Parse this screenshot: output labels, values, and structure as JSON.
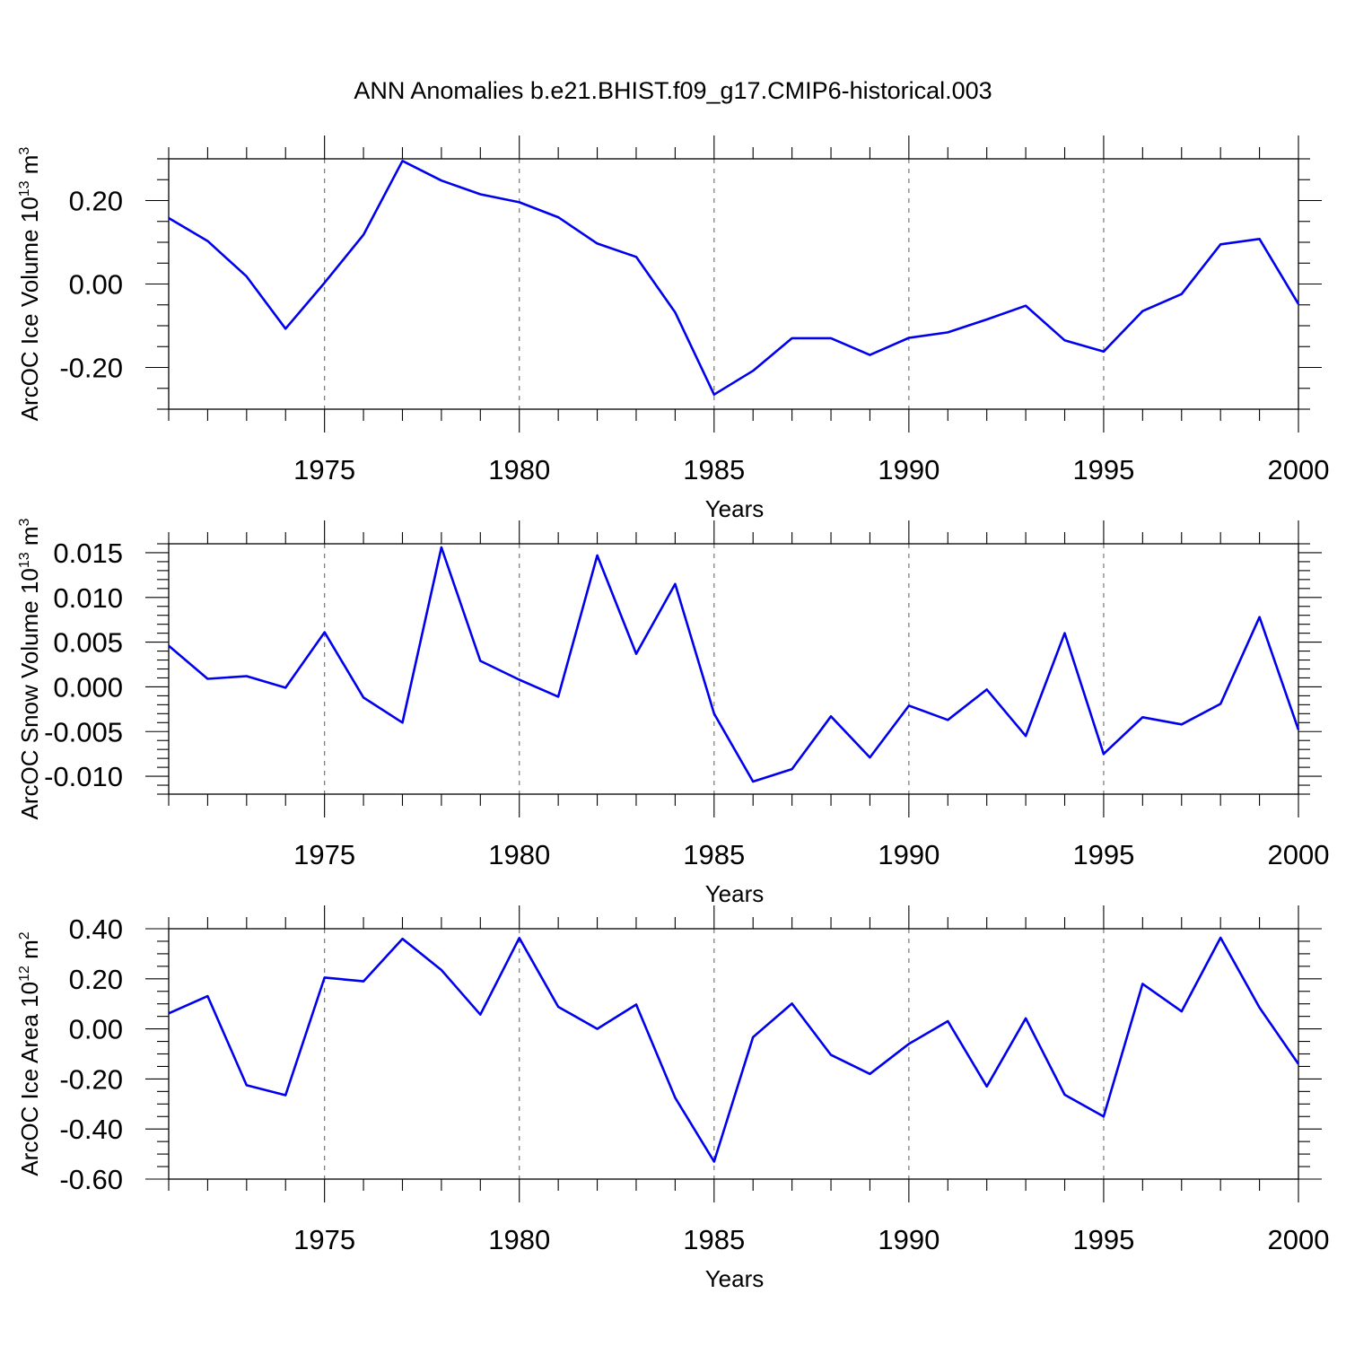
{
  "chart_data": {
    "title": "ANN Anomalies b.e21.BHIST.f09_g17.CMIP6-historical.003",
    "x": [
      1971,
      1972,
      1973,
      1974,
      1975,
      1976,
      1977,
      1978,
      1979,
      1980,
      1981,
      1982,
      1983,
      1984,
      1985,
      1986,
      1987,
      1988,
      1989,
      1990,
      1991,
      1992,
      1993,
      1994,
      1995,
      1996,
      1997,
      1998,
      1999,
      2000
    ],
    "panels": [
      {
        "type": "line",
        "ylabel": {
          "main": "ArcOC Ice Volume 10",
          "exp": "13",
          "unit": " m",
          "unit_exp": "3"
        },
        "xlabel": "Years",
        "xlim": [
          1971,
          2000
        ],
        "ylim": [
          -0.3,
          0.3
        ],
        "yticks": [
          -0.2,
          0.0,
          0.2
        ],
        "ytick_labels": [
          "-0.20",
          "0.00",
          "0.20"
        ],
        "yminor": 0.05,
        "xticks": [
          1975,
          1980,
          1985,
          1990,
          1995,
          2000
        ],
        "xtick_labels": [
          "1975",
          "1980",
          "1985",
          "1990",
          "1995",
          "2000"
        ],
        "grid_x": [
          1975,
          1980,
          1985,
          1990,
          1995
        ],
        "color": "#0000ee",
        "values": [
          0.158,
          0.103,
          0.018,
          -0.107,
          0.003,
          0.118,
          0.295,
          0.248,
          0.215,
          0.196,
          0.16,
          0.097,
          0.065,
          -0.068,
          -0.265,
          -0.208,
          -0.13,
          -0.13,
          -0.17,
          -0.129,
          -0.116,
          -0.085,
          -0.052,
          -0.135,
          -0.162,
          -0.065,
          -0.024,
          0.095,
          0.108,
          -0.048
        ]
      },
      {
        "type": "line",
        "ylabel": {
          "main": "ArcOC Snow Volume 10",
          "exp": "13",
          "unit": " m",
          "unit_exp": "3"
        },
        "xlabel": "Years",
        "xlim": [
          1971,
          2000
        ],
        "ylim": [
          -0.012,
          0.016
        ],
        "yticks": [
          -0.01,
          -0.005,
          0.0,
          0.005,
          0.01,
          0.015
        ],
        "ytick_labels": [
          "-0.010",
          "-0.005",
          "0.000",
          "0.005",
          "0.010",
          "0.015"
        ],
        "yminor": 0.001,
        "xticks": [
          1975,
          1980,
          1985,
          1990,
          1995,
          2000
        ],
        "xtick_labels": [
          "1975",
          "1980",
          "1985",
          "1990",
          "1995",
          "2000"
        ],
        "grid_x": [
          1975,
          1980,
          1985,
          1990,
          1995
        ],
        "color": "#0000ee",
        "values": [
          0.0046,
          0.0009,
          0.0012,
          -0.0001,
          0.0061,
          -0.0012,
          -0.004,
          0.0156,
          0.0029,
          0.0008,
          -0.0011,
          0.0147,
          0.0037,
          0.0115,
          -0.003,
          -0.0106,
          -0.0092,
          -0.0033,
          -0.0079,
          -0.0021,
          -0.0037,
          -0.0003,
          -0.0055,
          0.006,
          -0.0075,
          -0.0034,
          -0.0042,
          -0.0019,
          0.0078,
          -0.0048
        ]
      },
      {
        "type": "line",
        "ylabel": {
          "main": "ArcOC Ice Area 10",
          "exp": "12",
          "unit": " m",
          "unit_exp": "2"
        },
        "xlabel": "Years",
        "xlim": [
          1971,
          2000
        ],
        "ylim": [
          -0.6,
          0.4
        ],
        "yticks": [
          -0.6,
          -0.4,
          -0.2,
          0.0,
          0.2,
          0.4
        ],
        "ytick_labels": [
          "-0.60",
          "-0.40",
          "-0.20",
          "0.00",
          "0.20",
          "0.40"
        ],
        "yminor": 0.05,
        "xticks": [
          1975,
          1980,
          1985,
          1990,
          1995,
          2000
        ],
        "xtick_labels": [
          "1975",
          "1980",
          "1985",
          "1990",
          "1995",
          "2000"
        ],
        "grid_x": [
          1975,
          1980,
          1985,
          1990,
          1995
        ],
        "color": "#0000ee",
        "values": [
          0.062,
          0.131,
          -0.225,
          -0.265,
          0.205,
          0.19,
          0.36,
          0.235,
          0.057,
          0.363,
          0.088,
          0.0,
          0.097,
          -0.275,
          -0.53,
          -0.033,
          0.101,
          -0.104,
          -0.18,
          -0.06,
          0.031,
          -0.23,
          0.042,
          -0.263,
          -0.35,
          0.18,
          0.07,
          0.364,
          0.085,
          -0.14
        ]
      }
    ]
  }
}
